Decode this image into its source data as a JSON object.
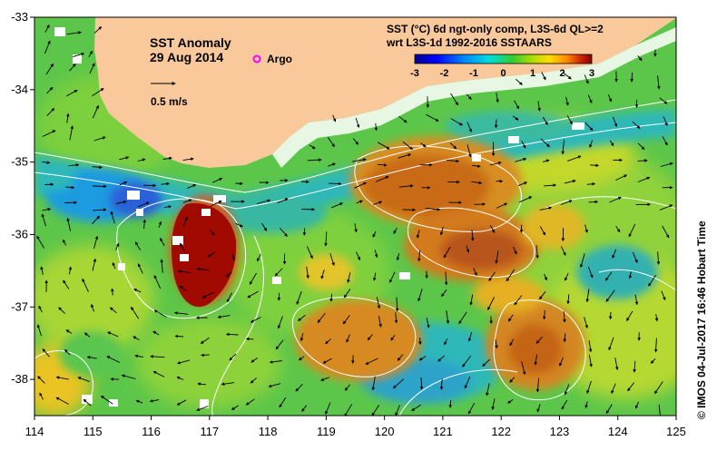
{
  "map": {
    "title": "SST Anomaly",
    "date": "29 Aug 2014",
    "argo_label": "Argo",
    "scale_label": "0.5 m/s",
    "product_line1": "SST (°C) 6d ngt-only comp, L3S-6d QL>=2",
    "product_line2": "wrt L3S-1d 1992-2016 SSTAARS",
    "credit": "©  IMOS 04-Jul-2017 16:46 Hobart Time",
    "lon_range": [
      114,
      125
    ],
    "lat_range": [
      -38.5,
      -33
    ],
    "lon_ticks": [
      "114",
      "115",
      "116",
      "117",
      "118",
      "119",
      "120",
      "121",
      "122",
      "123",
      "124",
      "125"
    ],
    "lat_ticks": [
      "-33",
      "-34",
      "-35",
      "-36",
      "-37",
      "-38"
    ],
    "colors": {
      "land": "#f9c89b",
      "argo": "#ff00ff",
      "contour": "#ffffff",
      "background_anomaly": "#5fc94a"
    }
  },
  "colorbar": {
    "ticks": [
      "-3",
      "-2",
      "-1",
      "0",
      "1",
      "2",
      "3"
    ],
    "range": [
      -3,
      3
    ],
    "colors": [
      "#000088",
      "#0000ff",
      "#0088ff",
      "#00dddd",
      "#33cc33",
      "#aadd00",
      "#ffdd00",
      "#ff8800",
      "#cc2200",
      "#880000"
    ]
  },
  "features": {
    "warm_eddies": [
      {
        "lon": 116.7,
        "lat": -36.3,
        "anomaly": 3.0
      },
      {
        "lon": 121.3,
        "lat": -35.5,
        "anomaly": 1.8
      },
      {
        "lon": 121.8,
        "lat": -36.3,
        "anomaly": 2.0
      },
      {
        "lon": 119.8,
        "lat": -37.5,
        "anomaly": 1.6
      },
      {
        "lon": 122.2,
        "lat": -37.6,
        "anomaly": 1.7
      }
    ],
    "cool_regions": [
      {
        "lon": 115.5,
        "lat": -35.6,
        "anomaly": -1.2
      },
      {
        "lon": 120.9,
        "lat": -37.9,
        "anomaly": -0.8
      },
      {
        "lon": 123.5,
        "lat": -37.0,
        "anomaly": -0.6
      }
    ]
  }
}
